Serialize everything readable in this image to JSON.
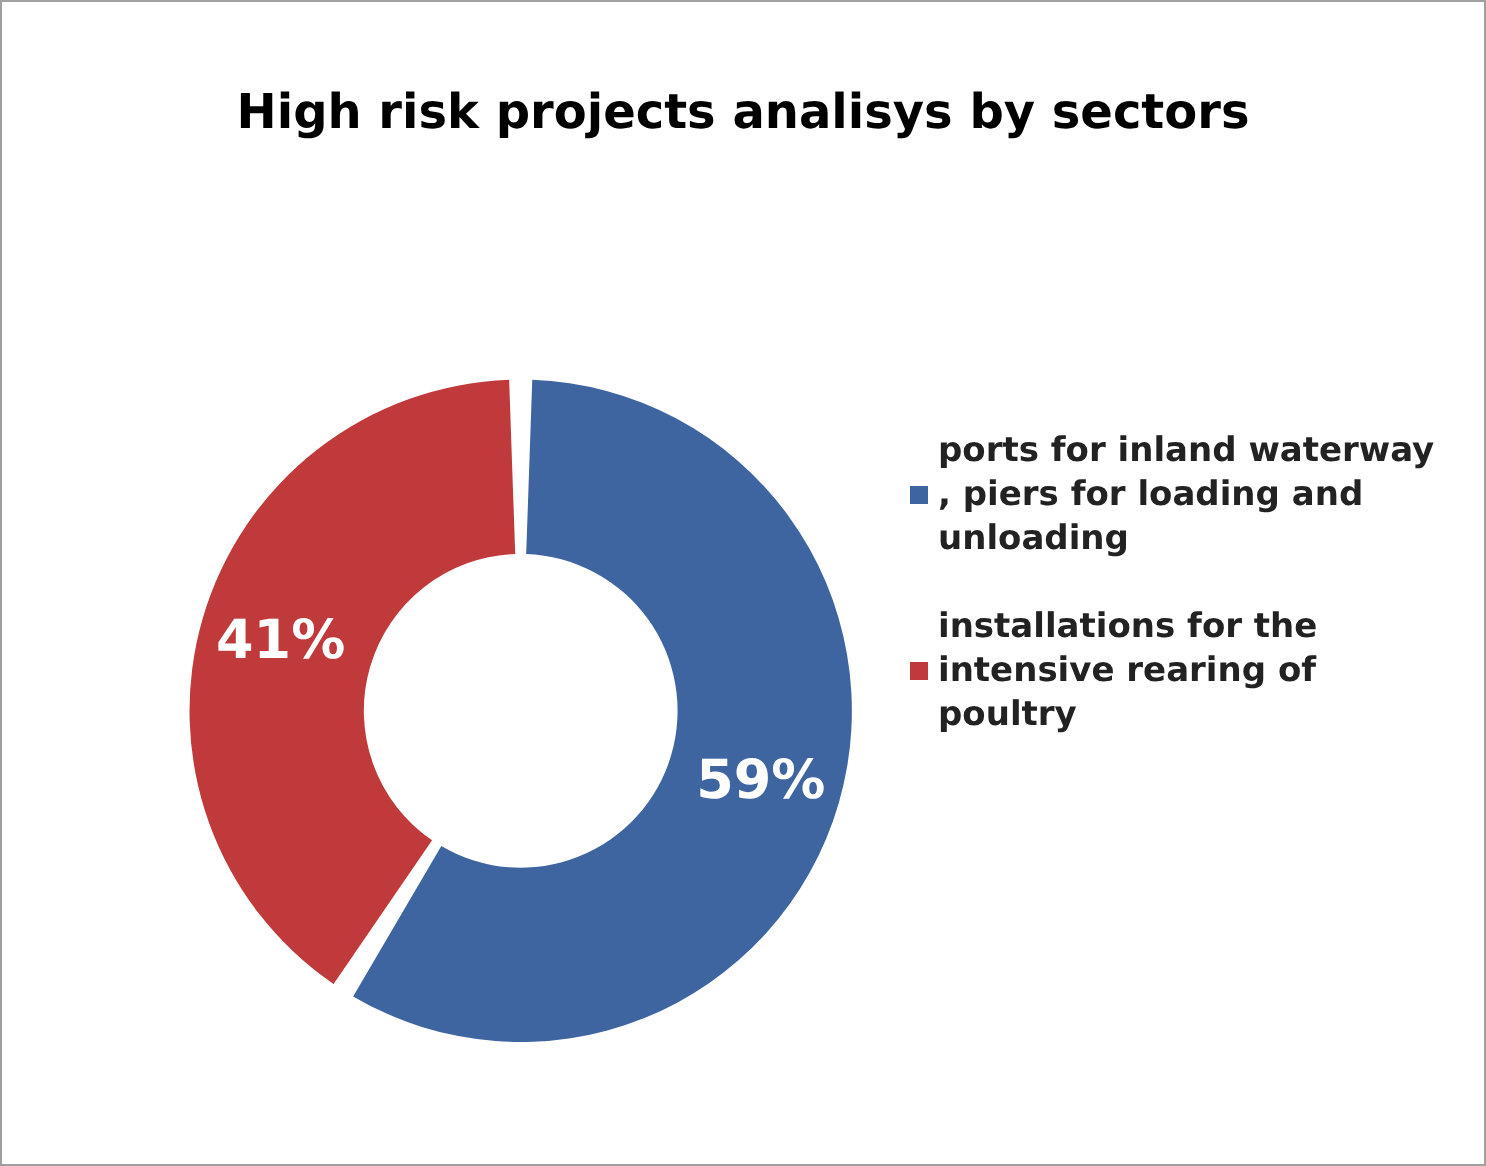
{
  "chart_data": {
    "type": "donut",
    "title": "High risk projects analisys by sectors",
    "categories": [
      "ports for inland waterway, piers for loading and unloading",
      "installations for the intensive rearing of poultry"
    ],
    "values": [
      59,
      41
    ],
    "colors": [
      "#3f65a0",
      "#c03a3c"
    ],
    "value_labels": [
      "59%",
      "41%"
    ],
    "legend": "right"
  }
}
